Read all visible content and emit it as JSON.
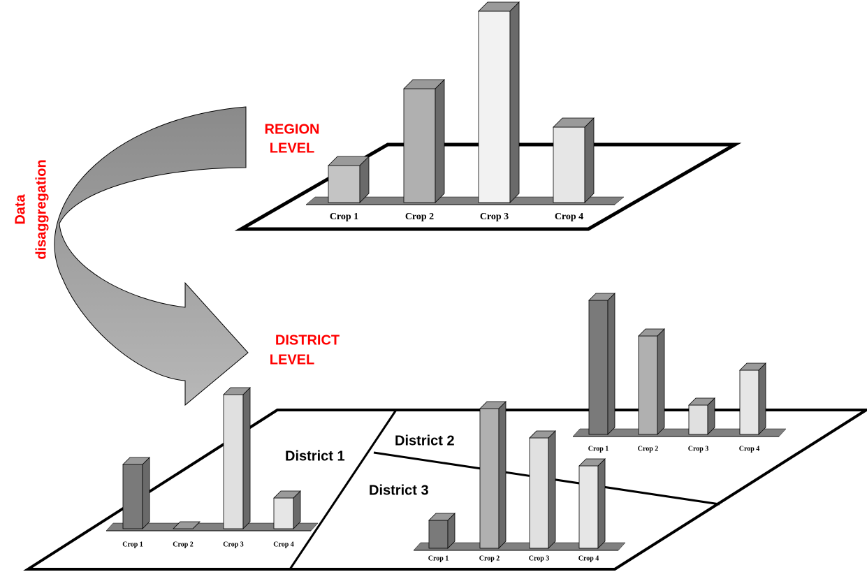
{
  "region_label": [
    "REGION",
    "LEVEL"
  ],
  "district_label": [
    "DISTRICT",
    "LEVEL"
  ],
  "arrow_label": [
    "Data",
    "disaggregation"
  ],
  "districts": [
    "District 1",
    "District 2",
    "District 3"
  ],
  "charts": [
    {
      "name": "Region",
      "categories": [
        "Crop 1",
        "Crop 2",
        "Crop 3",
        "Crop 4"
      ],
      "values": [
        53,
        163,
        274,
        108
      ],
      "colors": [
        "#c4c4c4",
        "#b0b0b0",
        "#f2f2f2",
        "#e6e6e6"
      ]
    },
    {
      "name": "District 1",
      "categories": [
        "Crop 1",
        "Crop 2",
        "Crop 3",
        "Crop 4"
      ],
      "values": [
        92,
        0,
        192,
        44
      ],
      "colors": [
        "#7a7a7a",
        "#b0b0b0",
        "#e0e0e0",
        "#e6e6e6"
      ]
    },
    {
      "name": "District 2",
      "categories": [
        "Crop 1",
        "Crop 2",
        "Crop 3",
        "Crop 4"
      ],
      "values": [
        192,
        141,
        42,
        92
      ],
      "colors": [
        "#7a7a7a",
        "#b0b0b0",
        "#e0e0e0",
        "#e6e6e6"
      ]
    },
    {
      "name": "District 3",
      "categories": [
        "Crop 1",
        "Crop 2",
        "Crop 3",
        "Crop 4"
      ],
      "values": [
        40,
        200,
        158,
        118
      ],
      "colors": [
        "#7a7a7a",
        "#b0b0b0",
        "#e0e0e0",
        "#e6e6e6"
      ]
    }
  ]
}
